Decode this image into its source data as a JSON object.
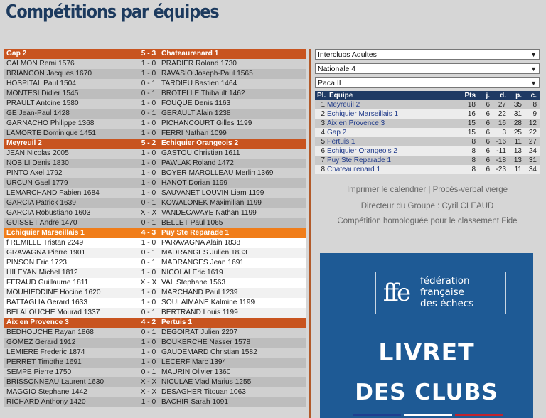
{
  "page_title": "Compétitions par équipes",
  "matches": [
    {
      "home": "Gap 2",
      "score": "5 - 3",
      "away": "Chateaurenard 1",
      "active": false,
      "games": [
        [
          "CALMON Remi 1576",
          "1 - 0",
          "PRADIER Roland 1730"
        ],
        [
          "BRIANCON Jacques 1670",
          "1 - 0",
          "RAVASIO Joseph-Paul 1565"
        ],
        [
          "HOSPITAL Paul 1504",
          "0 - 1",
          "TARDIEU Bastien 1464"
        ],
        [
          "MONTESI Didier 1545",
          "0 - 1",
          "BROTELLE Thibault 1462"
        ],
        [
          "PRAULT Antoine 1580",
          "1 - 0",
          "FOUQUE Denis 1163"
        ],
        [
          "GE Jean-Paul 1428",
          "0 - 1",
          "GERAULT Alain 1238"
        ],
        [
          "GARNACHO Philippe 1368",
          "1 - 0",
          "PICHANCOURT Gilles 1199"
        ],
        [
          "LAMORTE Dominique 1451",
          "1 - 0",
          "FERRI Nathan 1099"
        ]
      ]
    },
    {
      "home": "Meyreuil 2",
      "score": "5 - 2",
      "away": "Echiquier Orangeois 2",
      "active": false,
      "games": [
        [
          "JEAN Nicolas 2005",
          "1 - 0",
          "GASTOU Christian 1611"
        ],
        [
          "NOBILI Denis 1830",
          "1 - 0",
          "PAWLAK Roland 1472"
        ],
        [
          "PINTO Axel 1792",
          "1 - 0",
          "BOYER MAROLLEAU Merlin 1369"
        ],
        [
          "URCUN Gael 1779",
          "1 - 0",
          "HANOT Dorian 1199"
        ],
        [
          "LEMARCHAND Fabien 1684",
          "1 - 0",
          "SAUVANET LOUVIN Liam 1199"
        ],
        [
          "GARCIA Patrick 1639",
          "0 - 1",
          "KOWALONEK Maximilian 1199"
        ],
        [
          "GARCIA Robustiano 1603",
          "X - X",
          "VANDECAVAYE Nathan 1199"
        ],
        [
          "GUISSET Andre 1470",
          "0 - 1",
          "BELLET Paul 1065"
        ]
      ]
    },
    {
      "home": "Echiquier Marseillais 1",
      "score": "4 - 3",
      "away": "Puy Ste Reparade 1",
      "active": true,
      "games": [
        [
          "f REMILLE Tristan 2249",
          "1 - 0",
          "PARAVAGNA Alain 1838"
        ],
        [
          "GRAVAGNA Pierre 1901",
          "0 - 1",
          "MADRANGES Julien 1833"
        ],
        [
          "PINSON Eric 1723",
          "0 - 1",
          "MADRANGES Jean 1691"
        ],
        [
          "HILEYAN Michel 1812",
          "1 - 0",
          "NICOLAI Eric 1619"
        ],
        [
          "FERAUD Guillaume 1811",
          "X - X",
          "VAL Stephane 1563"
        ],
        [
          "MOUHIEDDINE Hocine 1620",
          "1 - 0",
          "MARCHAND Paul 1239"
        ],
        [
          "BATTAGLIA Gerard 1633",
          "1 - 0",
          "SOULAIMANE Kalmine 1199"
        ],
        [
          "BELALOUCHE Mourad 1337",
          "0 - 1",
          "BERTRAND Louis 1199"
        ]
      ]
    },
    {
      "home": "Aix en Provence 3",
      "score": "4 - 2",
      "away": "Pertuis 1",
      "active": false,
      "games": [
        [
          "BEDHOUCHE Rayan 1868",
          "0 - 1",
          "DEGOIRAT Julien 2207"
        ],
        [
          "GOMEZ Gerard 1912",
          "1 - 0",
          "BOUKERCHE Nasser 1578"
        ],
        [
          "LEMIERE Frederic 1874",
          "1 - 0",
          "GAUDEMARD Christian 1582"
        ],
        [
          "PERRET Timothe 1691",
          "1 - 0",
          "LECERF Marc 1394"
        ],
        [
          "SEMPE Pierre 1750",
          "0 - 1",
          "MAURIN Olivier 1360"
        ],
        [
          "BRISSONNEAU Laurent 1630",
          "X - X",
          "NICULAE Vlad Marius 1255"
        ],
        [
          "MAGGIO Stephane 1442",
          "X - X",
          "DESAGHER Titouan 1063"
        ],
        [
          "RICHARD Anthony 1420",
          "1 - 0",
          "BACHIR Sarah 1091"
        ]
      ]
    }
  ],
  "selects": {
    "competition": "Interclubs Adultes",
    "division": "Nationale 4",
    "group": "Paca II"
  },
  "standings": {
    "headers": [
      "Pl.",
      "Equipe",
      "Pts",
      "j.",
      "d.",
      "p.",
      "c."
    ],
    "rows": [
      [
        "1",
        "Meyreuil 2",
        "18",
        "6",
        "27",
        "35",
        "8"
      ],
      [
        "2",
        "Echiquier Marseillais 1",
        "16",
        "6",
        "22",
        "31",
        "9"
      ],
      [
        "3",
        "Aix en Provence 3",
        "15",
        "6",
        "16",
        "28",
        "12"
      ],
      [
        "4",
        "Gap 2",
        "15",
        "6",
        "3",
        "25",
        "22"
      ],
      [
        "5",
        "Pertuis 1",
        "8",
        "6",
        "-16",
        "11",
        "27"
      ],
      [
        "6",
        "Echiquier Orangeois 2",
        "8",
        "6",
        "-11",
        "13",
        "24"
      ],
      [
        "7",
        "Puy Ste Reparade 1",
        "8",
        "6",
        "-18",
        "13",
        "31"
      ],
      [
        "8",
        "Chateaurenard 1",
        "8",
        "6",
        "-23",
        "11",
        "34"
      ]
    ]
  },
  "links": {
    "calendar": "Imprimer le calendrier",
    "separator": "|",
    "report": "Procès-verbal vierge"
  },
  "director": "Directeur du Groupe : Cyril CLEAUD",
  "homologated": "Compétition homologuée pour le classement Fide",
  "ad": {
    "logo_mark": "ffe",
    "logo_line1": "fédération",
    "logo_line2": "française",
    "logo_line3": "des échecs",
    "title_line1": "LIVRET",
    "title_line2": "DES CLUBS",
    "colors": {
      "background": "#1e5a95",
      "blue": "#1f3f8f",
      "white": "#ffffff",
      "red": "#c0232e"
    }
  },
  "colors": {
    "title": "#1c3a5e",
    "match_header": "#c8541f",
    "match_header_active": "#f07d1a",
    "standings_header": "#1f3a64",
    "team_link": "#1f3a8a"
  }
}
